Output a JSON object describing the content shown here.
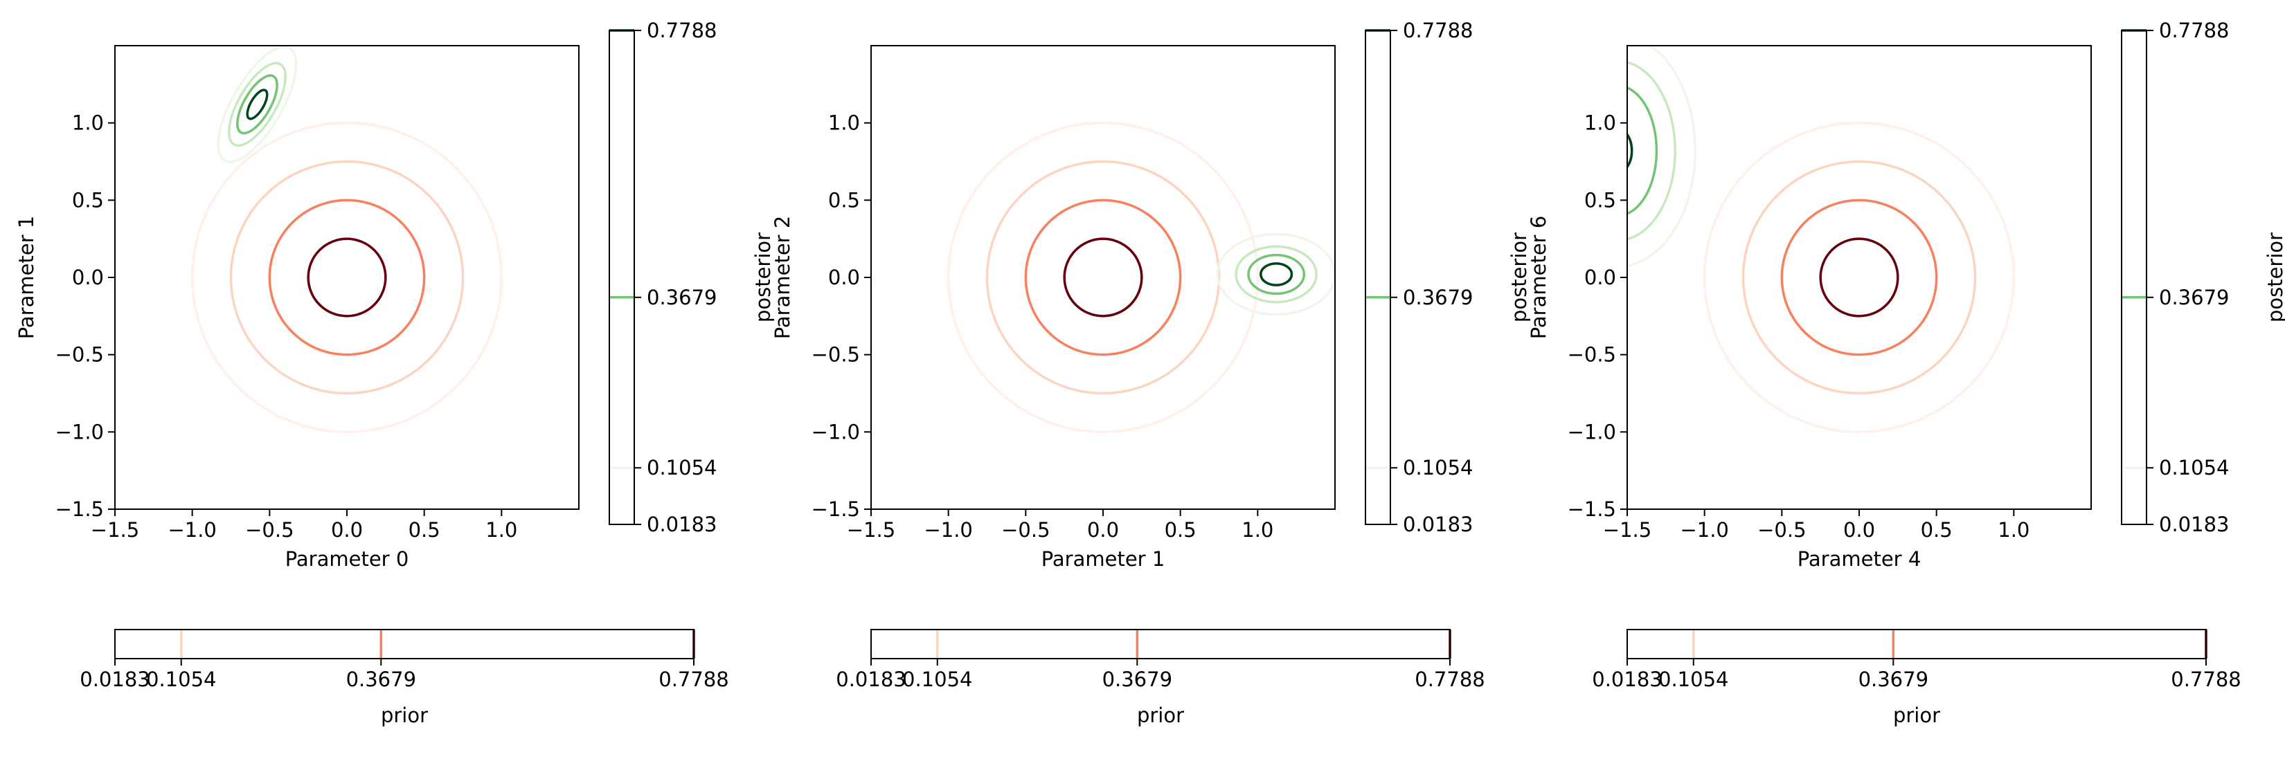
{
  "chart_data": [
    {
      "type": "contour",
      "xlabel": "Parameter 0",
      "ylabel": "Parameter 1",
      "xlim": [
        -1.5,
        1.5
      ],
      "ylim": [
        -1.5,
        1.5
      ],
      "xticks": [
        "−1.5",
        "−1.0",
        "−0.5",
        "0.0",
        "0.5",
        "1.0"
      ],
      "yticks": [
        "−1.5",
        "−1.0",
        "−0.5",
        "0.0",
        "0.5",
        "1.0"
      ],
      "prior": {
        "center": [
          0,
          0
        ],
        "levels": [
          {
            "radius": 1.0,
            "color": "#fff0e9"
          },
          {
            "radius": 0.75,
            "color": "#fdd3c1"
          },
          {
            "radius": 0.5,
            "color": "#f6805f"
          },
          {
            "radius": 0.25,
            "color": "#67000d"
          }
        ]
      },
      "posterior": {
        "center": [
          -0.58,
          1.12
        ],
        "angle_deg": -60,
        "levels": [
          {
            "a": 0.42,
            "b": 0.16,
            "color": "#edf8ea"
          },
          {
            "a": 0.3,
            "b": 0.12,
            "color": "#c7e9c0"
          },
          {
            "a": 0.21,
            "b": 0.085,
            "color": "#74c476"
          },
          {
            "a": 0.105,
            "b": 0.042,
            "color": "#00441b"
          }
        ]
      },
      "posterior_colorbar": {
        "label": "posterior",
        "ticks": [
          "0.7788",
          "0.3679",
          "0.1054",
          "0.0183"
        ],
        "tick_values": [
          0.7788,
          0.3679,
          0.1054,
          0.0183
        ],
        "tick_colors": [
          "#00441b",
          "#74c476",
          "#edf8ea",
          "#ffffff"
        ]
      }
    },
    {
      "type": "contour",
      "xlabel": "Parameter 1",
      "ylabel": "Parameter 2",
      "xlim": [
        -1.5,
        1.5
      ],
      "ylim": [
        -1.5,
        1.5
      ],
      "xticks": [
        "−1.5",
        "−1.0",
        "−0.5",
        "0.0",
        "0.5",
        "1.0"
      ],
      "yticks": [
        "−1.5",
        "−1.0",
        "−0.5",
        "0.0",
        "0.5",
        "1.0"
      ],
      "prior": {
        "center": [
          0,
          0
        ],
        "levels": [
          {
            "radius": 1.0,
            "color": "#fff0e9"
          },
          {
            "radius": 0.75,
            "color": "#fdd3c1"
          },
          {
            "radius": 0.5,
            "color": "#f6805f"
          },
          {
            "radius": 0.25,
            "color": "#67000d"
          }
        ]
      },
      "posterior": {
        "center": [
          1.12,
          0.02
        ],
        "angle_deg": 0,
        "levels": [
          {
            "a": 0.38,
            "b": 0.26,
            "color": "#edf8ea"
          },
          {
            "a": 0.26,
            "b": 0.18,
            "color": "#c7e9c0"
          },
          {
            "a": 0.18,
            "b": 0.125,
            "color": "#74c476"
          },
          {
            "a": 0.1,
            "b": 0.07,
            "color": "#00441b"
          }
        ]
      },
      "posterior_colorbar": {
        "label": "posterior",
        "ticks": [
          "0.7788",
          "0.3679",
          "0.1054",
          "0.0183"
        ],
        "tick_values": [
          0.7788,
          0.3679,
          0.1054,
          0.0183
        ],
        "tick_colors": [
          "#00441b",
          "#74c476",
          "#edf8ea",
          "#ffffff"
        ]
      }
    },
    {
      "type": "contour",
      "xlabel": "Parameter 4",
      "ylabel": "Parameter 6",
      "xlim": [
        -1.5,
        1.5
      ],
      "ylim": [
        -1.5,
        1.5
      ],
      "xticks": [
        "−1.5",
        "−1.0",
        "−0.5",
        "0.0",
        "0.5",
        "1.0"
      ],
      "yticks": [
        "−1.5",
        "−1.0",
        "−0.5",
        "0.0",
        "0.5",
        "1.0"
      ],
      "prior": {
        "center": [
          0,
          0
        ],
        "levels": [
          {
            "radius": 1.0,
            "color": "#fff0e9"
          },
          {
            "radius": 0.75,
            "color": "#fdd3c1"
          },
          {
            "radius": 0.5,
            "color": "#f6805f"
          },
          {
            "radius": 0.25,
            "color": "#67000d"
          }
        ]
      },
      "posterior": {
        "center": [
          -1.56,
          0.82
        ],
        "angle_deg": 0,
        "levels": [
          {
            "a": 0.5,
            "b": 0.75,
            "color": "#edf8ea"
          },
          {
            "a": 0.37,
            "b": 0.58,
            "color": "#c7e9c0"
          },
          {
            "a": 0.25,
            "b": 0.42,
            "color": "#74c476"
          },
          {
            "a": 0.09,
            "b": 0.14,
            "color": "#00441b"
          }
        ]
      },
      "posterior_colorbar": {
        "label": "posterior",
        "ticks": [
          "0.7788",
          "0.3679",
          "0.1054",
          "0.0183"
        ],
        "tick_values": [
          0.7788,
          0.3679,
          0.1054,
          0.0183
        ],
        "tick_colors": [
          "#00441b",
          "#74c476",
          "#edf8ea",
          "#ffffff"
        ]
      }
    }
  ],
  "prior_colorbar": {
    "label": "prior",
    "ticks": [
      "0.0183",
      "0.1054",
      "0.3679",
      "0.7788"
    ],
    "tick_values": [
      0.0183,
      0.1054,
      0.3679,
      0.7788
    ],
    "tick_colors": [
      "#ffffff",
      "#fdd3c1",
      "#f6805f",
      "#67000d"
    ]
  }
}
